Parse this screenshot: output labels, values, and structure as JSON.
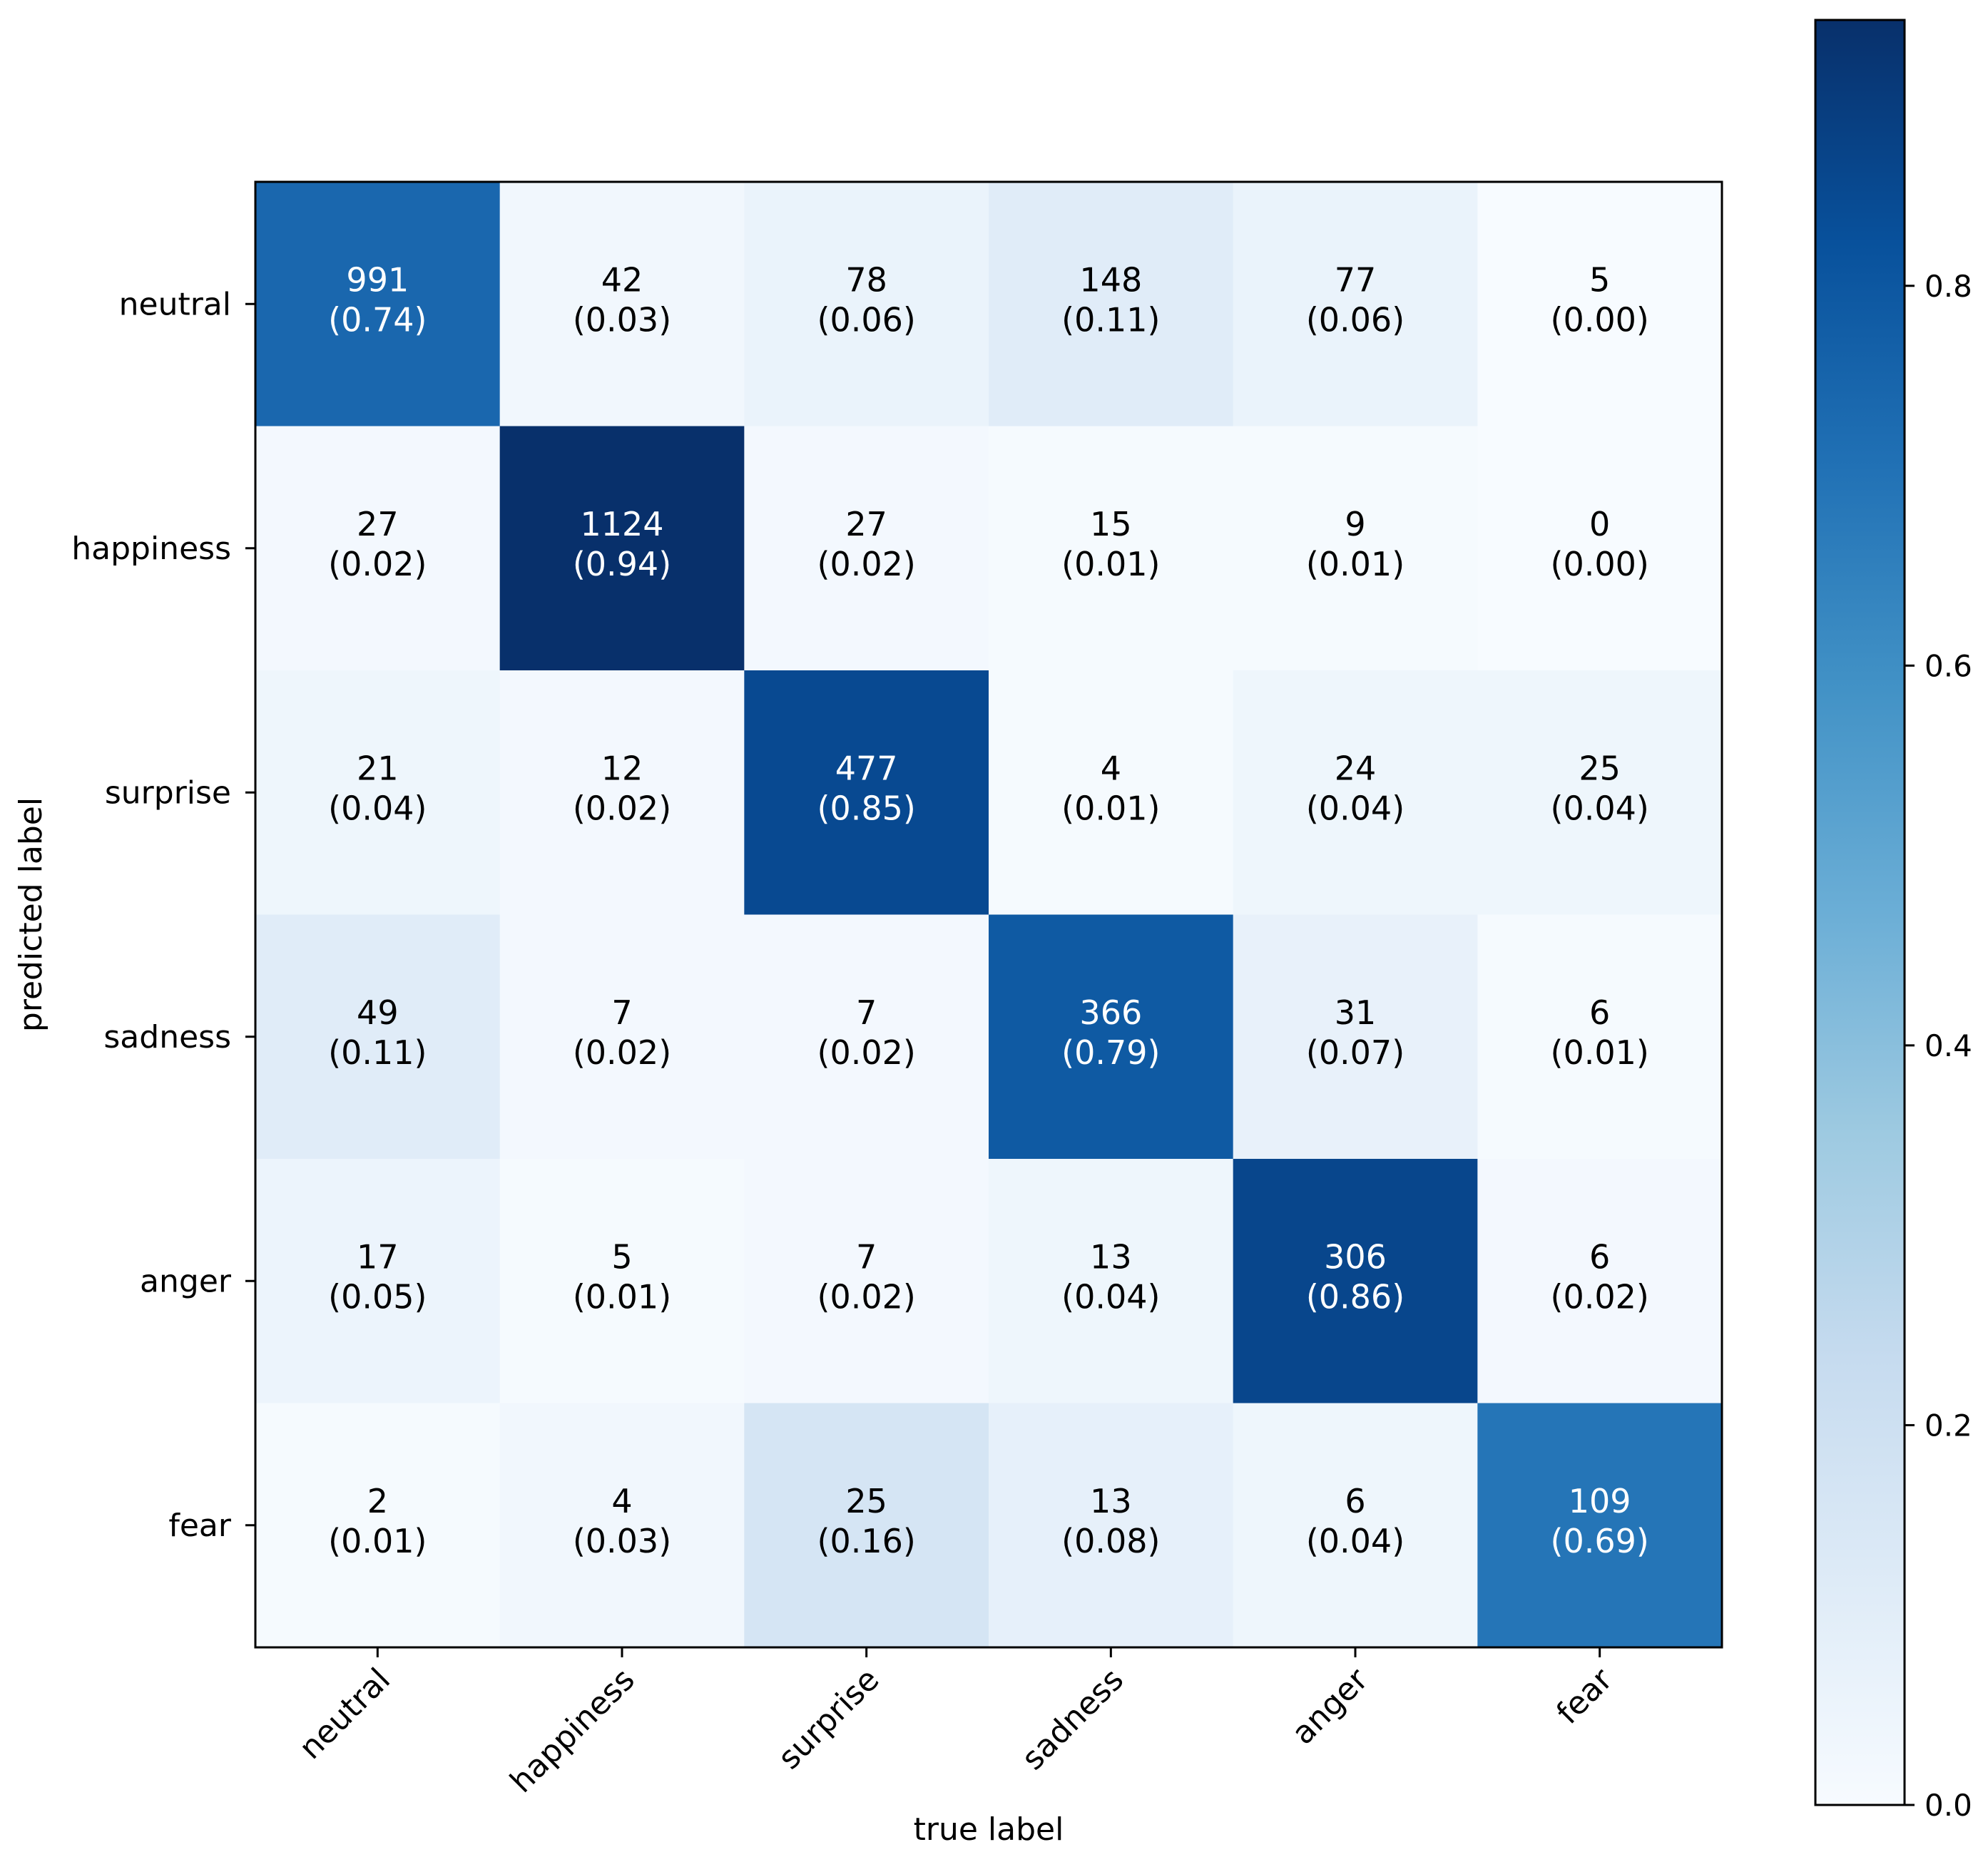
{
  "chart_data": {
    "type": "heatmap",
    "title": "",
    "xlabel": "true label",
    "ylabel": "predicted label",
    "x_categories": [
      "neutral",
      "happiness",
      "surprise",
      "sadness",
      "anger",
      "fear"
    ],
    "y_categories": [
      "neutral",
      "happiness",
      "surprise",
      "sadness",
      "anger",
      "fear"
    ],
    "counts": [
      [
        991,
        42,
        78,
        148,
        77,
        5
      ],
      [
        27,
        1124,
        27,
        15,
        9,
        0
      ],
      [
        21,
        12,
        477,
        4,
        24,
        25
      ],
      [
        49,
        7,
        7,
        366,
        31,
        6
      ],
      [
        17,
        5,
        7,
        13,
        306,
        6
      ],
      [
        2,
        4,
        25,
        13,
        6,
        109
      ]
    ],
    "normalized": [
      [
        0.74,
        0.03,
        0.06,
        0.11,
        0.06,
        0.0
      ],
      [
        0.02,
        0.94,
        0.02,
        0.01,
        0.01,
        0.0
      ],
      [
        0.04,
        0.02,
        0.85,
        0.01,
        0.04,
        0.04
      ],
      [
        0.11,
        0.02,
        0.02,
        0.79,
        0.07,
        0.01
      ],
      [
        0.05,
        0.01,
        0.02,
        0.04,
        0.86,
        0.02
      ],
      [
        0.01,
        0.03,
        0.16,
        0.08,
        0.04,
        0.69
      ]
    ],
    "normalized_labels": [
      [
        "(0.74)",
        "(0.03)",
        "(0.06)",
        "(0.11)",
        "(0.06)",
        "(0.00)"
      ],
      [
        "(0.02)",
        "(0.94)",
        "(0.02)",
        "(0.01)",
        "(0.01)",
        "(0.00)"
      ],
      [
        "(0.04)",
        "(0.02)",
        "(0.85)",
        "(0.01)",
        "(0.04)",
        "(0.04)"
      ],
      [
        "(0.11)",
        "(0.02)",
        "(0.02)",
        "(0.79)",
        "(0.07)",
        "(0.01)"
      ],
      [
        "(0.05)",
        "(0.01)",
        "(0.02)",
        "(0.04)",
        "(0.86)",
        "(0.02)"
      ],
      [
        "(0.01)",
        "(0.03)",
        "(0.16)",
        "(0.08)",
        "(0.04)",
        "(0.69)"
      ]
    ],
    "colormap": "Blues",
    "colorbar": {
      "range": [
        0.0,
        0.94
      ],
      "ticks": [
        0.0,
        0.2,
        0.4,
        0.6,
        0.8
      ],
      "tick_labels": [
        "0.0",
        "0.2",
        "0.4",
        "0.6",
        "0.8"
      ]
    },
    "text_threshold": 0.47,
    "text_colors": {
      "dark_bg": "#ffffff",
      "light_bg": "#000000"
    }
  },
  "colors": {
    "blues": [
      "#f7fbff",
      "#deebf7",
      "#c6dbef",
      "#9ecae1",
      "#6baed6",
      "#4292c6",
      "#2171b5",
      "#08519c",
      "#08306b"
    ]
  }
}
